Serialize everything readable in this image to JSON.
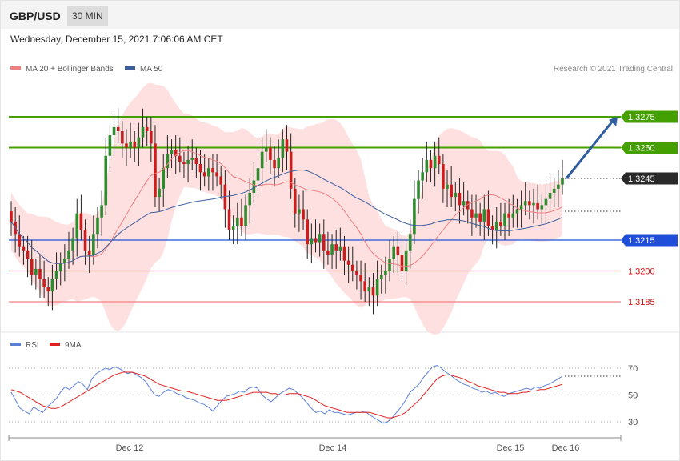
{
  "header": {
    "pair": "GBP/USD",
    "timeframe": "30 MIN"
  },
  "timestamp": "Wednesday, December 15, 2021 7:06:06 AM CET",
  "legend_main": [
    {
      "label": "MA 20 + Bollinger Bands",
      "color": "#f08080"
    },
    {
      "label": "MA 50",
      "color": "#3c5f9c"
    }
  ],
  "credit": "Research © 2021 Trading Central",
  "legend_rsi": [
    {
      "label": "RSI",
      "color": "#5b7fd6"
    },
    {
      "label": "9MA",
      "color": "#e02020"
    }
  ],
  "colors": {
    "up": "#2e8b2e",
    "down": "#c81e1e",
    "resistance": "#44a000",
    "support": "#1f4fd8",
    "target": "#f08080",
    "current": "#2a2a2a",
    "arrow": "#2f5ea0",
    "band": "#ffd6d6"
  },
  "chart_data": [
    {
      "type": "candlestick",
      "title": "GBP/USD",
      "timeframe": "30 MIN",
      "x_labels": [
        "Dec 12",
        "Dec 14",
        "Dec 15",
        "Dec 16"
      ],
      "y_range": [
        1.3165,
        1.329
      ],
      "levels": [
        {
          "value": 1.3275,
          "label": "1.3275",
          "kind": "resistance"
        },
        {
          "value": 1.326,
          "label": "1.3260",
          "kind": "resistance"
        },
        {
          "value": 1.3245,
          "label": "1.3245",
          "kind": "current"
        },
        {
          "value": 1.3215,
          "label": "1.3215",
          "kind": "support"
        },
        {
          "value": 1.32,
          "label": "1.3200",
          "kind": "target"
        },
        {
          "value": 1.3185,
          "label": "1.3185",
          "kind": "target"
        }
      ],
      "projection": {
        "from": 1.3245,
        "to": 1.3275
      },
      "closes": [
        1.3224,
        1.3218,
        1.3212,
        1.321,
        1.3206,
        1.3198,
        1.3201,
        1.3196,
        1.3192,
        1.319,
        1.3196,
        1.32,
        1.3204,
        1.3206,
        1.321,
        1.3216,
        1.3228,
        1.322,
        1.321,
        1.3208,
        1.3218,
        1.3226,
        1.3232,
        1.3256,
        1.3266,
        1.327,
        1.3268,
        1.3262,
        1.326,
        1.3263,
        1.326,
        1.3265,
        1.327,
        1.3268,
        1.3262,
        1.3236,
        1.324,
        1.325,
        1.3257,
        1.3259,
        1.3256,
        1.3253,
        1.3252,
        1.3254,
        1.3255,
        1.3252,
        1.3248,
        1.3246,
        1.325,
        1.3248,
        1.3246,
        1.3242,
        1.323,
        1.322,
        1.3222,
        1.3226,
        1.3222,
        1.3232,
        1.3238,
        1.3244,
        1.325,
        1.3258,
        1.326,
        1.3254,
        1.325,
        1.3255,
        1.3264,
        1.3258,
        1.324,
        1.3228,
        1.323,
        1.3225,
        1.3213,
        1.3216,
        1.3214,
        1.3218,
        1.321,
        1.3208,
        1.3213,
        1.321,
        1.3212,
        1.3205,
        1.3203,
        1.32,
        1.3198,
        1.3195,
        1.319,
        1.3192,
        1.3188,
        1.3196,
        1.3198,
        1.32,
        1.3206,
        1.3212,
        1.3208,
        1.32,
        1.321,
        1.3218,
        1.3235,
        1.3244,
        1.3248,
        1.3254,
        1.325,
        1.3256,
        1.3252,
        1.324,
        1.3242,
        1.3236,
        1.3238,
        1.3232,
        1.3234,
        1.323,
        1.3226,
        1.3228,
        1.3224,
        1.323,
        1.3222,
        1.322,
        1.3224,
        1.3222,
        1.3228,
        1.3226,
        1.3228,
        1.323,
        1.3232,
        1.3234,
        1.3232,
        1.3233,
        1.323,
        1.3232,
        1.3235,
        1.3238,
        1.324,
        1.3242,
        1.3245
      ]
    },
    {
      "type": "line",
      "title": "RSI",
      "y_ticks": [
        30,
        50,
        70
      ],
      "series": [
        {
          "name": "RSI",
          "values": [
            52,
            46,
            40,
            38,
            36,
            41,
            39,
            37,
            41,
            44,
            47,
            52,
            56,
            54,
            57,
            60,
            58,
            54,
            62,
            66,
            68,
            70,
            69,
            71,
            70,
            68,
            66,
            67,
            65,
            63,
            60,
            55,
            50,
            49,
            52,
            54,
            53,
            51,
            50,
            48,
            47,
            46,
            44,
            43,
            41,
            38,
            42,
            46,
            49,
            50,
            51,
            53,
            52,
            55,
            56,
            55,
            50,
            47,
            45,
            48,
            51,
            53,
            55,
            54,
            51,
            48,
            44,
            40,
            37,
            38,
            36,
            39,
            37,
            37,
            36,
            35,
            36,
            37,
            37,
            38,
            35,
            33,
            31,
            29,
            30,
            33,
            37,
            41,
            46,
            52,
            55,
            58,
            63,
            67,
            71,
            72,
            70,
            67,
            65,
            62,
            60,
            58,
            57,
            55,
            54,
            52,
            53,
            51,
            52,
            50,
            49,
            51,
            52,
            53,
            54,
            55,
            54,
            56,
            55,
            57,
            58,
            60,
            62,
            64
          ]
        },
        {
          "name": "9MA",
          "values": [
            54,
            53,
            52,
            50,
            48,
            46,
            44,
            42,
            41,
            40,
            40,
            41,
            43,
            45,
            47,
            49,
            51,
            53,
            55,
            57,
            59,
            61,
            63,
            65,
            66,
            67,
            67,
            67,
            66,
            65,
            64,
            62,
            60,
            58,
            57,
            56,
            55,
            54,
            53,
            53,
            52,
            51,
            50,
            49,
            48,
            47,
            46,
            46,
            46,
            47,
            48,
            49,
            50,
            51,
            52,
            52,
            52,
            52,
            51,
            51,
            50,
            50,
            51,
            51,
            51,
            50,
            49,
            48,
            46,
            44,
            42,
            41,
            40,
            39,
            38,
            37,
            37,
            37,
            37,
            37,
            37,
            36,
            35,
            34,
            33,
            33,
            34,
            35,
            37,
            40,
            43,
            46,
            50,
            54,
            58,
            62,
            64,
            65,
            65,
            64,
            63,
            62,
            60,
            59,
            57,
            56,
            55,
            54,
            53,
            52,
            52,
            51,
            51,
            51,
            52,
            52,
            53,
            53,
            54,
            54,
            55,
            56,
            57,
            58
          ]
        }
      ]
    }
  ]
}
